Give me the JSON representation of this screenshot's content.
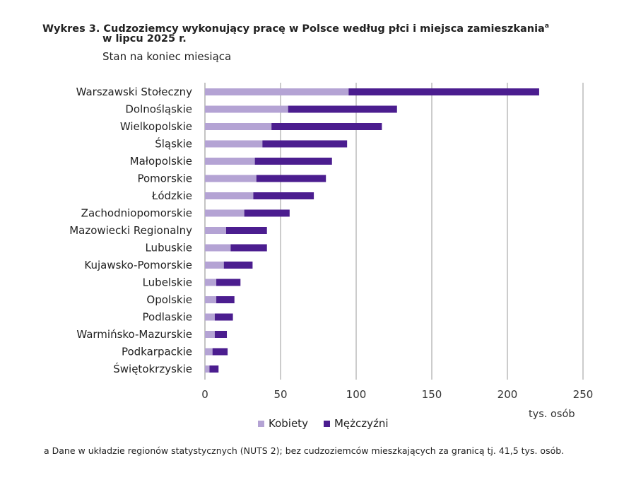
{
  "title": "Wykres 3. Cudzoziemcy wykonujący pracę w Polsce według płci i miejsca zamieszkania",
  "title_sup": "a",
  "title_line2": "w lipcu 2025 r.",
  "subtitle": "Stan na koniec miesiąca",
  "footnote": "a Dane w układzie regionów statystycznych (NUTS 2); bez cudzoziemców mieszkających za granicą tj. 41,5 tys. osób.",
  "chart_data": {
    "type": "bar",
    "orientation": "horizontal",
    "stacked": true,
    "categories": [
      "Warszawski Stołeczny",
      "Dolnośląskie",
      "Wielkopolskie",
      "Śląskie",
      "Małopolskie",
      "Pomorskie",
      "Łódzkie",
      "Zachodniopomorskie",
      "Mazowiecki Regionalny",
      "Lubuskie",
      "Kujawsko-Pomorskie",
      "Lubelskie",
      "Opolskie",
      "Podlaskie",
      "Warmińsko-Mazurskie",
      "Podkarpackie",
      "Świętokrzyskie"
    ],
    "series": [
      {
        "name": "Kobiety",
        "color": "#b4a3d4",
        "values": [
          95,
          55,
          44,
          38,
          33,
          34,
          32,
          26,
          14,
          17,
          12.5,
          7.5,
          7.5,
          6.5,
          6.5,
          5,
          3
        ]
      },
      {
        "name": "Mężczyźni",
        "color": "#4b1d8f",
        "values": [
          126,
          72,
          73,
          56,
          51,
          46,
          40,
          30,
          27,
          24,
          19,
          16,
          12,
          12,
          8,
          10,
          6
        ]
      }
    ],
    "xlabel": "tys. osób",
    "xlim": [
      0,
      250
    ],
    "xticks": [
      "0",
      "50",
      "100",
      "150",
      "200",
      "250"
    ],
    "grid": "vertical",
    "legend": "bottom"
  }
}
